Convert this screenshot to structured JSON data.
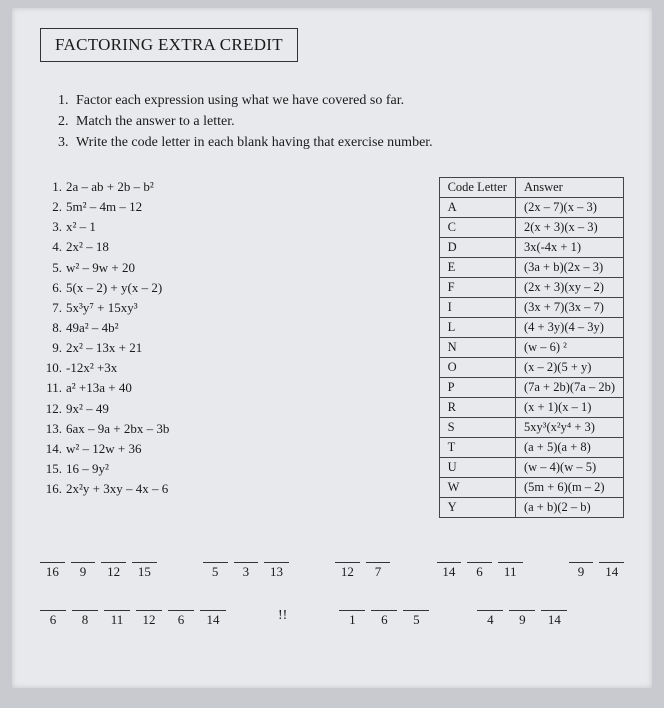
{
  "title": "FACTORING EXTRA CREDIT",
  "instructions": [
    "Factor each expression using what we have covered so far.",
    "Match the answer to a letter.",
    "Write the code letter in each blank having that exercise number."
  ],
  "problems": [
    {
      "n": "1.",
      "expr": "2a – ab + 2b – b²"
    },
    {
      "n": "2.",
      "expr": "5m² – 4m – 12"
    },
    {
      "n": "3.",
      "expr": "x² – 1"
    },
    {
      "n": "4.",
      "expr": "2x² – 18"
    },
    {
      "n": "5.",
      "expr": "w² – 9w + 20"
    },
    {
      "n": "6.",
      "expr": "5(x – 2) + y(x – 2)"
    },
    {
      "n": "7.",
      "expr": "5x³y⁷ + 15xy³"
    },
    {
      "n": "8.",
      "expr": "49a² – 4b²"
    },
    {
      "n": "9.",
      "expr": "2x² – 13x + 21"
    },
    {
      "n": "10.",
      "expr": "-12x² +3x"
    },
    {
      "n": "11.",
      "expr": "a² +13a + 40"
    },
    {
      "n": "12.",
      "expr": "9x² – 49"
    },
    {
      "n": "13.",
      "expr": "6ax – 9a + 2bx – 3b"
    },
    {
      "n": "14.",
      "expr": "w² – 12w + 36"
    },
    {
      "n": "15.",
      "expr": "16 – 9y²"
    },
    {
      "n": "16.",
      "expr": "2x²y + 3xy – 4x – 6"
    }
  ],
  "tableHeaders": {
    "code": "Code Letter",
    "ans": "Answer"
  },
  "answers": [
    {
      "letter": "A",
      "ans": "(2x – 7)(x – 3)"
    },
    {
      "letter": "C",
      "ans": "2(x + 3)(x – 3)"
    },
    {
      "letter": "D",
      "ans": "3x(-4x + 1)"
    },
    {
      "letter": "E",
      "ans": "(3a + b)(2x – 3)"
    },
    {
      "letter": "F",
      "ans": "(2x + 3)(xy – 2)"
    },
    {
      "letter": "I",
      "ans": "(3x + 7)(3x – 7)"
    },
    {
      "letter": "L",
      "ans": "(4 + 3y)(4 – 3y)"
    },
    {
      "letter": "N",
      "ans": "(w – 6) ²"
    },
    {
      "letter": "O",
      "ans": "(x – 2)(5 + y)"
    },
    {
      "letter": "P",
      "ans": "(7a + 2b)(7a – 2b)"
    },
    {
      "letter": "R",
      "ans": "(x + 1)(x – 1)"
    },
    {
      "letter": "S",
      "ans": "5xy³(x²y⁴ + 3)"
    },
    {
      "letter": "T",
      "ans": "(a + 5)(a + 8)"
    },
    {
      "letter": "U",
      "ans": "(w – 4)(w – 5)"
    },
    {
      "letter": "W",
      "ans": "(5m + 6)(m – 2)"
    },
    {
      "letter": "Y",
      "ans": "(a + b)(2 – b)"
    }
  ],
  "codeLines": [
    {
      "groups": [
        [
          "16",
          "9",
          "12",
          "15"
        ],
        [
          "5",
          "3",
          "13"
        ],
        [
          "12",
          "7"
        ],
        [
          "14",
          "6",
          "11"
        ],
        [
          "9",
          "14"
        ]
      ]
    },
    {
      "groups": [
        [
          "6",
          "8",
          "11",
          "12",
          "6",
          "14"
        ],
        [
          "!!"
        ],
        [
          "1",
          "6",
          "5"
        ],
        [
          "4",
          "9",
          "14"
        ]
      ]
    }
  ],
  "colors": {
    "pageBg": "#c8cad0",
    "paperBg": "#e8e9ec",
    "border": "#333333",
    "text": "#1a1a1a"
  }
}
